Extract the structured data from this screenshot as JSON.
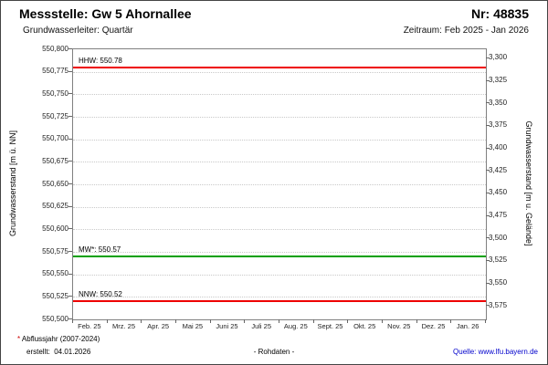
{
  "header": {
    "title": "Messstelle: Gw 5 Ahornallee",
    "number": "Nr: 48835",
    "aquifer": "Grundwasserleiter: Quartär",
    "period": "Zeitraum: Feb 2025 - Jan 2026"
  },
  "chart_data": {
    "type": "line",
    "title": "",
    "ylabel_left": "Grundwasserstand [m ü. NN]",
    "ylabel_right": "Grundwasserstand [m u. Gelände]",
    "ylim_left": [
      550.5,
      550.8
    ],
    "ylim_right": [
      3.29,
      3.59
    ],
    "grid": "horizontal-dotted",
    "legend_position": "none",
    "yticks_left": {
      "values": [
        550.8,
        550.775,
        550.75,
        550.725,
        550.7,
        550.675,
        550.65,
        550.625,
        550.6,
        550.575,
        550.55,
        550.525,
        550.5
      ],
      "labels": [
        "550,800",
        "550,775",
        "550,750",
        "550,725",
        "550,700",
        "550,675",
        "550,650",
        "550,625",
        "550,600",
        "550,575",
        "550,550",
        "550,525",
        "550,500"
      ]
    },
    "yticks_right": {
      "values": [
        3.3,
        3.325,
        3.35,
        3.375,
        3.4,
        3.425,
        3.45,
        3.475,
        3.5,
        3.525,
        3.55,
        3.575
      ],
      "labels": [
        "3,300",
        "3,325",
        "3,350",
        "3,375",
        "3,400",
        "3,425",
        "3,450",
        "3,475",
        "3,500",
        "3,525",
        "3,550",
        "3,575"
      ]
    },
    "xticks": [
      "Feb. 25",
      "Mrz. 25",
      "Apr. 25",
      "Mai 25",
      "Juni 25",
      "Juli 25",
      "Aug. 25",
      "Sept. 25",
      "Okt. 25",
      "Nov. 25",
      "Dez. 25",
      "Jan. 26"
    ],
    "reference_lines": [
      {
        "name": "hhw",
        "label": "HHW: 550.78",
        "value": 550.78,
        "color": "#ee0000"
      },
      {
        "name": "mw",
        "label": "MW*: 550.57",
        "value": 550.57,
        "color": "#00a000"
      },
      {
        "name": "nnw",
        "label": "NNW: 550.52",
        "value": 550.52,
        "color": "#ee0000"
      }
    ],
    "series": []
  },
  "footer": {
    "note_star": "*",
    "note_text": " Abflussjahr (2007-2024)",
    "created": "erstellt:  04.01.2026",
    "center": "- Rohdaten -",
    "source_prefix": "Quelle: ",
    "source_link": "www.lfu.bayern.de"
  }
}
